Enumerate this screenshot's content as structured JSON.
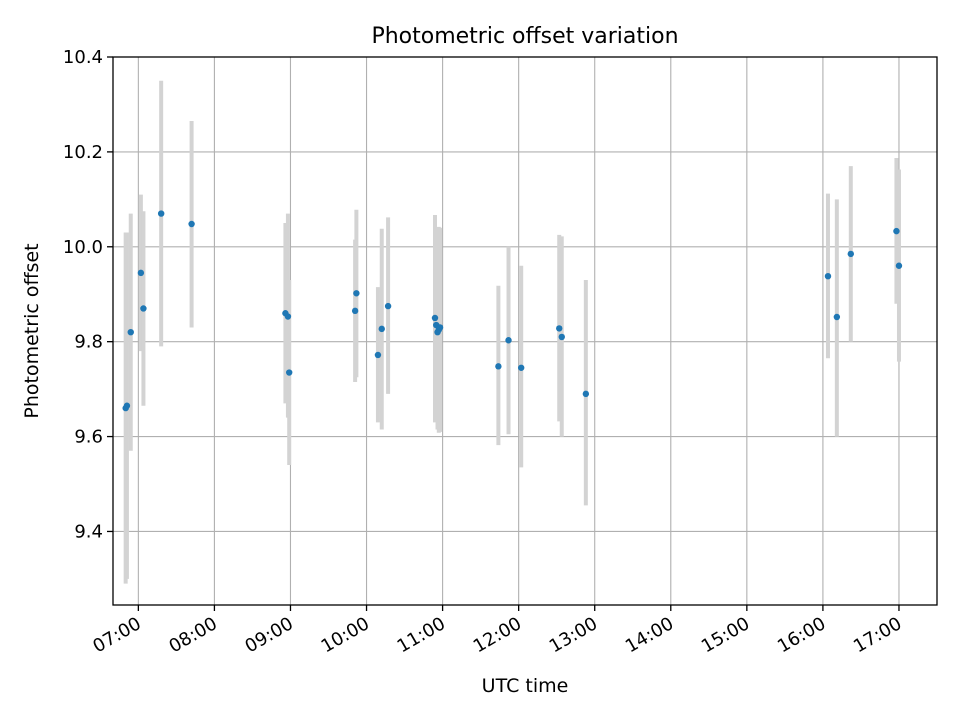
{
  "chart_data": {
    "type": "scatter",
    "title": "Photometric offset variation",
    "xlabel": "UTC time",
    "ylabel": "Photometric offset",
    "xlim": [
      "06:40",
      "17:30"
    ],
    "ylim": [
      9.245,
      10.4
    ],
    "x_ticks": [
      "07:00",
      "08:00",
      "09:00",
      "10:00",
      "11:00",
      "12:00",
      "13:00",
      "14:00",
      "15:00",
      "16:00",
      "17:00"
    ],
    "y_ticks": [
      9.4,
      9.6,
      9.8,
      10.0,
      10.2,
      10.4
    ],
    "y_tick_labels": [
      "9.4",
      "9.6",
      "9.8",
      "10.0",
      "10.2",
      "10.4"
    ],
    "grid": true,
    "point_color": "#1f77b4",
    "errorbar_color": "#d3d3d3",
    "points": [
      {
        "x": "06:50",
        "y": 9.66,
        "y_err_low": 9.29,
        "y_err_high": 10.03
      },
      {
        "x": "06:51",
        "y": 9.665,
        "y_err_low": 9.3,
        "y_err_high": 10.03
      },
      {
        "x": "06:54",
        "y": 9.82,
        "y_err_low": 9.57,
        "y_err_high": 10.07
      },
      {
        "x": "07:02",
        "y": 9.945,
        "y_err_low": 9.78,
        "y_err_high": 10.11
      },
      {
        "x": "07:04",
        "y": 9.87,
        "y_err_low": 9.665,
        "y_err_high": 10.075
      },
      {
        "x": "07:18",
        "y": 10.07,
        "y_err_low": 9.79,
        "y_err_high": 10.35
      },
      {
        "x": "07:42",
        "y": 10.048,
        "y_err_low": 9.83,
        "y_err_high": 10.265
      },
      {
        "x": "08:56",
        "y": 9.86,
        "y_err_low": 9.67,
        "y_err_high": 10.05
      },
      {
        "x": "08:58",
        "y": 9.853,
        "y_err_low": 9.64,
        "y_err_high": 10.07
      },
      {
        "x": "08:59",
        "y": 9.735,
        "y_err_low": 9.54,
        "y_err_high": 9.93
      },
      {
        "x": "09:51",
        "y": 9.865,
        "y_err_low": 9.715,
        "y_err_high": 10.015
      },
      {
        "x": "09:52",
        "y": 9.902,
        "y_err_low": 9.725,
        "y_err_high": 10.078
      },
      {
        "x": "10:09",
        "y": 9.772,
        "y_err_low": 9.63,
        "y_err_high": 9.915
      },
      {
        "x": "10:12",
        "y": 9.827,
        "y_err_low": 9.615,
        "y_err_high": 10.038
      },
      {
        "x": "10:17",
        "y": 9.875,
        "y_err_low": 9.69,
        "y_err_high": 10.062
      },
      {
        "x": "10:54",
        "y": 9.85,
        "y_err_low": 9.63,
        "y_err_high": 10.067
      },
      {
        "x": "10:55",
        "y": 9.835,
        "y_err_low": 9.64,
        "y_err_high": 10.04
      },
      {
        "x": "10:56",
        "y": 9.82,
        "y_err_low": 9.615,
        "y_err_high": 10.04
      },
      {
        "x": "10:57",
        "y": 9.825,
        "y_err_low": 9.608,
        "y_err_high": 10.042
      },
      {
        "x": "10:58",
        "y": 9.83,
        "y_err_low": 9.61,
        "y_err_high": 10.04
      },
      {
        "x": "11:44",
        "y": 9.748,
        "y_err_low": 9.582,
        "y_err_high": 9.918
      },
      {
        "x": "11:52",
        "y": 9.803,
        "y_err_low": 9.605,
        "y_err_high": 10.0
      },
      {
        "x": "12:02",
        "y": 9.745,
        "y_err_low": 9.535,
        "y_err_high": 9.96
      },
      {
        "x": "12:32",
        "y": 9.828,
        "y_err_low": 9.632,
        "y_err_high": 10.025
      },
      {
        "x": "12:34",
        "y": 9.81,
        "y_err_low": 9.6,
        "y_err_high": 10.022
      },
      {
        "x": "12:53",
        "y": 9.69,
        "y_err_low": 9.455,
        "y_err_high": 9.93
      },
      {
        "x": "16:04",
        "y": 9.938,
        "y_err_low": 9.765,
        "y_err_high": 10.112
      },
      {
        "x": "16:11",
        "y": 9.852,
        "y_err_low": 9.6,
        "y_err_high": 10.1
      },
      {
        "x": "16:22",
        "y": 9.985,
        "y_err_low": 9.8,
        "y_err_high": 10.17
      },
      {
        "x": "16:58",
        "y": 10.033,
        "y_err_low": 9.88,
        "y_err_high": 10.187
      },
      {
        "x": "17:00",
        "y": 9.96,
        "y_err_low": 9.758,
        "y_err_high": 10.163
      }
    ]
  }
}
